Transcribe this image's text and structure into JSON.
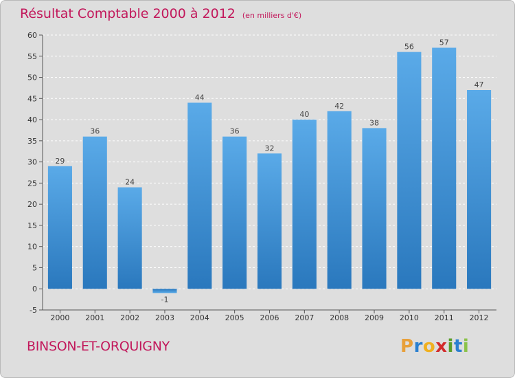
{
  "chart_data": {
    "type": "bar",
    "title": "Résultat Comptable 2000 à 2012",
    "subtitle": "(en milliers d'€)",
    "categories": [
      "2000",
      "2001",
      "2002",
      "2003",
      "2004",
      "2005",
      "2006",
      "2007",
      "2008",
      "2009",
      "2010",
      "2011",
      "2012"
    ],
    "values": [
      29,
      36,
      24,
      -1,
      44,
      36,
      32,
      40,
      42,
      38,
      56,
      57,
      47
    ],
    "ylim": [
      -5,
      60
    ],
    "yticks": [
      -5,
      0,
      5,
      10,
      15,
      20,
      25,
      30,
      35,
      40,
      45,
      50,
      55,
      60
    ],
    "xlabel": "",
    "ylabel": "",
    "grid": true,
    "bar_color": "#3a8fd6"
  },
  "footer": {
    "commune": "BINSON-ET-ORQUIGNY",
    "logo_letters": [
      "P",
      "r",
      "o",
      "x",
      "i",
      "t",
      "i"
    ],
    "logo_colors": [
      "#e8a03a",
      "#2a7fd0",
      "#f0b020",
      "#d22b2b",
      "#5a9e2a",
      "#2a7fd0",
      "#8bc34a"
    ]
  }
}
